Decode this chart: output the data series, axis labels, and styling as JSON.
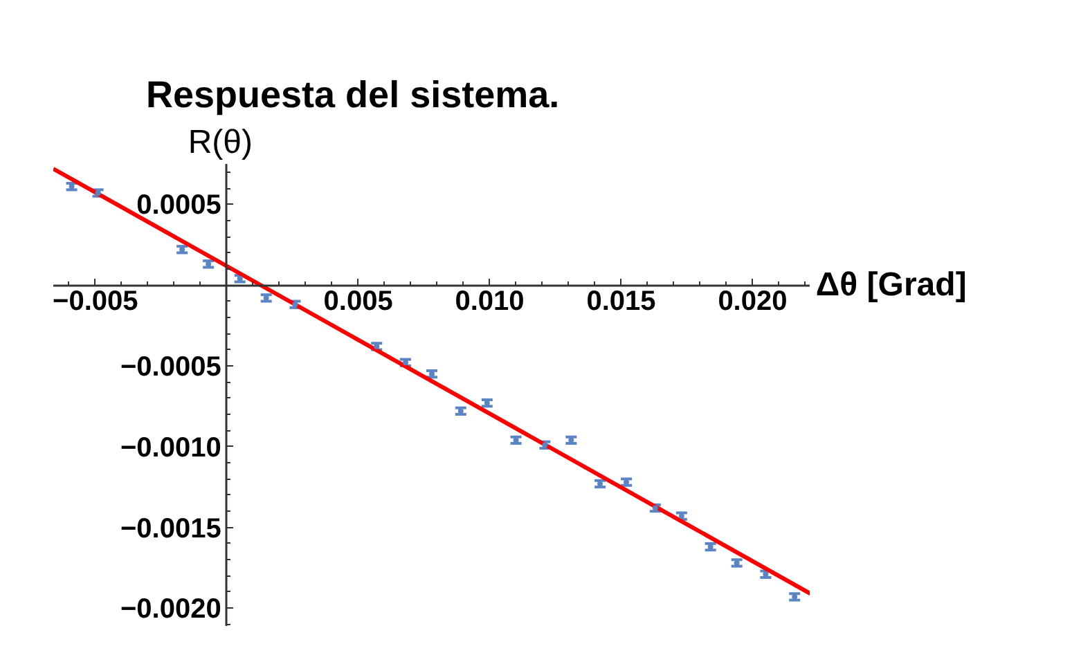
{
  "chart_data": {
    "type": "scatter",
    "title": "Respuesta del sistema.",
    "xlabel": "Δθ [Grad]",
    "ylabel": "R(θ)",
    "x": [
      -0.0059,
      -0.0049,
      -0.0038,
      -0.0028,
      -0.0017,
      -0.0007,
      0.0005,
      0.0015,
      0.0026,
      0.0036,
      0.0047,
      0.0057,
      0.0068,
      0.0078,
      0.0089,
      0.0099,
      0.011,
      0.0121,
      0.0131,
      0.0142,
      0.0152,
      0.0163,
      0.0173,
      0.0184,
      0.0194,
      0.0205,
      0.0216
    ],
    "series": [
      {
        "color": "#5b84c4",
        "marker": "circle",
        "values": [
          0.00061,
          0.00057,
          null,
          null,
          0.00022,
          0.00013,
          4e-05,
          -8e-05,
          -0.00012,
          null,
          null,
          -0.00038,
          -0.00048,
          -0.00055,
          -0.00078,
          -0.00073,
          -0.00096,
          -0.00099,
          -0.00096,
          -0.00123,
          -0.00122,
          -0.00138,
          -0.00143,
          -0.00162,
          -0.00172,
          -0.00179,
          -0.00193
        ],
        "errors": [
          2e-05,
          2e-05,
          null,
          null,
          2e-05,
          2e-05,
          2e-05,
          2e-05,
          2e-05,
          null,
          null,
          2e-05,
          2e-05,
          2e-05,
          2e-05,
          2e-05,
          2e-05,
          2e-05,
          2e-05,
          2e-05,
          2e-05,
          2e-05,
          2e-05,
          2e-05,
          2e-05,
          2e-05,
          2e-05
        ]
      },
      {
        "type": "line",
        "color": "#ff0000",
        "line_style": "solid",
        "x": [
          -0.0066,
          0.0222
        ],
        "values": [
          0.00072,
          -0.00191
        ]
      }
    ],
    "xlim": [
      -0.0066,
      0.0222
    ],
    "ylim": [
      -0.00211,
      0.00075
    ],
    "xticks": [
      {
        "value": -0.005,
        "label": "−0.005"
      },
      {
        "value": 0.005,
        "label": "0.005"
      },
      {
        "value": 0.01,
        "label": "0.010"
      },
      {
        "value": 0.015,
        "label": "0.015"
      },
      {
        "value": 0.02,
        "label": "0.020"
      }
    ],
    "yticks": [
      {
        "value": -0.002,
        "label": "−0.0020"
      },
      {
        "value": -0.0015,
        "label": "−0.0015"
      },
      {
        "value": -0.001,
        "label": "−0.0010"
      },
      {
        "value": -0.0005,
        "label": "−0.0005"
      },
      {
        "value": 0.0005,
        "label": "0.0005"
      }
    ],
    "grid": false
  }
}
